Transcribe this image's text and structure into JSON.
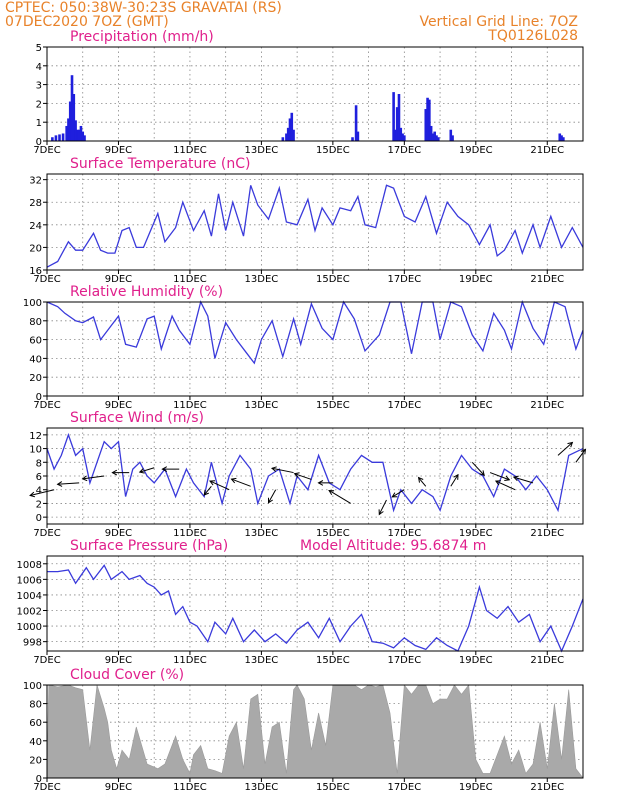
{
  "header": {
    "line1": "CPTEC:   050:38W-30:23S   GRAVATAI (RS)",
    "line2": "07DEC2020 7OZ (GMT)",
    "right1": "Vertical Grid Line: 7OZ",
    "right2": "TQ0126L028"
  },
  "colors": {
    "header": "#e8822a",
    "panel_title": "#e0208c",
    "series": "#3a3adb",
    "bars": "#1f1fdd",
    "cloud": "#a9a9a9"
  },
  "x_axis": {
    "days": [
      7,
      22
    ],
    "ticks": [
      {
        "day": 7,
        "label": "7DEC"
      },
      {
        "day": 9,
        "label": "9DEC"
      },
      {
        "day": 11,
        "label": "11DEC"
      },
      {
        "day": 13,
        "label": "13DEC"
      },
      {
        "day": 15,
        "label": "15DEC"
      },
      {
        "day": 17,
        "label": "17DEC"
      },
      {
        "day": 19,
        "label": "19DEC"
      },
      {
        "day": 21,
        "label": "21DEC"
      }
    ],
    "grid": "daily dotted"
  },
  "chart_data": [
    {
      "type": "bar",
      "title": "Precipitation (mm/h)",
      "ylim": [
        0,
        5
      ],
      "yticks": [
        0,
        1,
        2,
        3,
        4,
        5
      ],
      "x": [
        7.15,
        7.25,
        7.35,
        7.45,
        7.55,
        7.6,
        7.65,
        7.7,
        7.75,
        7.8,
        7.85,
        7.9,
        7.95,
        8.0,
        8.05,
        13.6,
        13.7,
        13.75,
        13.8,
        13.85,
        13.9,
        15.55,
        15.65,
        15.7,
        16.7,
        16.75,
        16.8,
        16.85,
        16.9,
        16.95,
        17.0,
        17.6,
        17.65,
        17.7,
        17.75,
        17.8,
        17.85,
        17.9,
        17.95,
        18.3,
        18.35,
        21.35,
        21.4,
        21.45
      ],
      "values": [
        0.2,
        0.3,
        0.35,
        0.4,
        0.8,
        1.2,
        2.1,
        3.5,
        2.5,
        1.1,
        0.6,
        0.6,
        0.8,
        0.5,
        0.3,
        0.2,
        0.4,
        0.7,
        1.2,
        1.5,
        0.6,
        0.2,
        1.9,
        0.5,
        2.6,
        0.6,
        1.8,
        2.5,
        0.7,
        0.4,
        0.3,
        1.7,
        2.3,
        2.2,
        0.8,
        0.4,
        0.5,
        0.3,
        0.2,
        0.6,
        0.3,
        0.4,
        0.3,
        0.2
      ]
    },
    {
      "type": "line",
      "title": "Surface Temperature (nC)",
      "ylim": [
        16,
        33
      ],
      "yticks": [
        16,
        20,
        24,
        28,
        32
      ],
      "series": [
        {
          "x": [
            7.0,
            7.3,
            7.6,
            7.8,
            8.0,
            8.3,
            8.5,
            8.7,
            8.9,
            9.1,
            9.3,
            9.5,
            9.7,
            9.9,
            10.1,
            10.3,
            10.6,
            10.8,
            11.1,
            11.4,
            11.6,
            11.8,
            12.0,
            12.2,
            12.5,
            12.7,
            12.9,
            13.2,
            13.5,
            13.7,
            14.0,
            14.3,
            14.5,
            14.7,
            15.0,
            15.2,
            15.5,
            15.7,
            15.9,
            16.2,
            16.5,
            16.7,
            17.0,
            17.3,
            17.6,
            17.9,
            18.2,
            18.5,
            18.8,
            19.1,
            19.4,
            19.6,
            19.8,
            20.1,
            20.3,
            20.6,
            20.8,
            21.1,
            21.4,
            21.7,
            22.0
          ],
          "y": [
            16.5,
            17.5,
            21.0,
            19.5,
            19.5,
            22.5,
            19.5,
            19.0,
            19.0,
            23.0,
            23.5,
            20.0,
            20.0,
            23.0,
            26.0,
            21.0,
            23.5,
            28.0,
            23.0,
            26.5,
            22.0,
            29.5,
            23.0,
            28.0,
            22.0,
            31.0,
            27.5,
            25.0,
            30.5,
            24.5,
            24.0,
            28.5,
            23.0,
            27.0,
            24.0,
            27.0,
            26.5,
            29.0,
            24.0,
            23.5,
            31.0,
            30.5,
            25.5,
            24.5,
            29.0,
            22.5,
            28.0,
            25.5,
            24.0,
            20.5,
            24.0,
            18.5,
            19.5,
            23.0,
            19.0,
            24.0,
            20.0,
            25.5,
            20.0,
            23.5,
            20.0
          ]
        }
      ]
    },
    {
      "type": "line",
      "title": "Relative Humidity (%)",
      "ylim": [
        0,
        100
      ],
      "yticks": [
        0,
        20,
        40,
        60,
        80,
        100
      ],
      "series": [
        {
          "x": [
            7.0,
            7.3,
            7.5,
            7.8,
            8.0,
            8.3,
            8.5,
            8.8,
            9.0,
            9.2,
            9.5,
            9.8,
            10.0,
            10.2,
            10.5,
            10.7,
            11.0,
            11.3,
            11.5,
            11.7,
            12.0,
            12.3,
            12.6,
            12.8,
            13.0,
            13.3,
            13.6,
            13.9,
            14.1,
            14.4,
            14.7,
            15.0,
            15.3,
            15.6,
            15.9,
            16.3,
            16.6,
            16.9,
            17.2,
            17.5,
            17.8,
            18.0,
            18.3,
            18.6,
            18.9,
            19.2,
            19.5,
            19.8,
            20.0,
            20.3,
            20.6,
            20.9,
            21.2,
            21.5,
            21.8,
            22.0
          ],
          "y": [
            100,
            95,
            88,
            80,
            78,
            84,
            60,
            75,
            85,
            55,
            52,
            82,
            85,
            50,
            85,
            70,
            55,
            100,
            85,
            40,
            78,
            60,
            45,
            35,
            60,
            80,
            42,
            82,
            55,
            98,
            72,
            60,
            100,
            82,
            48,
            65,
            100,
            100,
            45,
            100,
            100,
            60,
            100,
            95,
            65,
            48,
            88,
            70,
            50,
            100,
            72,
            55,
            100,
            95,
            50,
            70
          ]
        }
      ]
    },
    {
      "type": "line",
      "title": "Surface Wind (m/s)",
      "ylim": [
        -1,
        13
      ],
      "yticks": [
        0,
        2,
        4,
        6,
        8,
        10,
        12
      ],
      "series": [
        {
          "x": [
            7.0,
            7.2,
            7.4,
            7.6,
            7.8,
            8.0,
            8.2,
            8.4,
            8.6,
            8.8,
            9.0,
            9.2,
            9.4,
            9.6,
            9.8,
            10.0,
            10.3,
            10.6,
            10.9,
            11.1,
            11.4,
            11.6,
            11.9,
            12.1,
            12.4,
            12.7,
            12.9,
            13.2,
            13.5,
            13.8,
            14.0,
            14.3,
            14.6,
            14.9,
            15.2,
            15.5,
            15.8,
            16.1,
            16.4,
            16.7,
            16.9,
            17.2,
            17.5,
            17.8,
            18.0,
            18.3,
            18.6,
            18.9,
            19.2,
            19.5,
            19.8,
            20.1,
            20.4,
            20.7,
            21.0,
            21.3,
            21.6,
            22.0
          ],
          "y": [
            10,
            7,
            9,
            12,
            9,
            10,
            5,
            8,
            11,
            10,
            11,
            3,
            7,
            8,
            6,
            5,
            7,
            3,
            7,
            5,
            3,
            8,
            2,
            6,
            9,
            7,
            2,
            6,
            7,
            2,
            6,
            4,
            9,
            5,
            4,
            7,
            9,
            8,
            8,
            1,
            4,
            2,
            4,
            3,
            1,
            6,
            9,
            7,
            6,
            3,
            7,
            6,
            4,
            6,
            4,
            1,
            9,
            10
          ]
        }
      ],
      "arrows": [
        {
          "x": 7.2,
          "y": 4.0,
          "u": 1.0,
          "v": 0.4
        },
        {
          "x": 7.9,
          "y": 5.0,
          "u": 0.9,
          "v": 0.1
        },
        {
          "x": 8.6,
          "y": 6.0,
          "u": 0.9,
          "v": 0.2
        },
        {
          "x": 9.3,
          "y": 6.5,
          "u": 0.7,
          "v": 0.0
        },
        {
          "x": 10.0,
          "y": 7.2,
          "u": 0.6,
          "v": 0.3
        },
        {
          "x": 10.7,
          "y": 7.0,
          "u": 0.7,
          "v": 0.0
        },
        {
          "x": 11.6,
          "y": 4.5,
          "u": 0.3,
          "v": 0.6
        },
        {
          "x": 12.1,
          "y": 4.0,
          "u": 0.8,
          "v": -0.6
        },
        {
          "x": 12.7,
          "y": 4.5,
          "u": 0.8,
          "v": -0.5
        },
        {
          "x": 13.4,
          "y": 4.0,
          "u": 0.3,
          "v": 0.9
        },
        {
          "x": 13.9,
          "y": 6.5,
          "u": 0.9,
          "v": -0.3
        },
        {
          "x": 14.4,
          "y": 5.5,
          "u": 0.7,
          "v": -0.4
        },
        {
          "x": 15.0,
          "y": 5.0,
          "u": 0.6,
          "v": 0.0
        },
        {
          "x": 15.5,
          "y": 2.0,
          "u": 0.9,
          "v": -0.9
        },
        {
          "x": 16.5,
          "y": 2.5,
          "u": 0.3,
          "v": 1.0
        },
        {
          "x": 17.0,
          "y": 4.0,
          "u": 0.5,
          "v": 0.5
        },
        {
          "x": 17.6,
          "y": 4.5,
          "u": 0.3,
          "v": -0.6
        },
        {
          "x": 18.3,
          "y": 4.5,
          "u": -0.3,
          "v": -0.8
        },
        {
          "x": 18.9,
          "y": 8.0,
          "u": -0.5,
          "v": 0.9
        },
        {
          "x": 19.4,
          "y": 6.5,
          "u": -0.8,
          "v": 0.5
        },
        {
          "x": 20.1,
          "y": 4.0,
          "u": 0.8,
          "v": -0.6
        },
        {
          "x": 20.6,
          "y": 5.0,
          "u": 0.8,
          "v": -0.4
        },
        {
          "x": 21.3,
          "y": 9.0,
          "u": -0.6,
          "v": -0.9
        },
        {
          "x": 21.8,
          "y": 8.0,
          "u": -0.4,
          "v": -0.9
        }
      ]
    },
    {
      "type": "line",
      "title": "Surface Pressure (hPa)",
      "subtitle": "Model Altitude: 95.6874 m",
      "ylim": [
        996.8,
        1009
      ],
      "yticks": [
        998,
        1000,
        1002,
        1004,
        1006,
        1008
      ],
      "series": [
        {
          "x": [
            7.0,
            7.3,
            7.6,
            7.8,
            8.1,
            8.3,
            8.6,
            8.8,
            9.1,
            9.3,
            9.6,
            9.8,
            10.0,
            10.2,
            10.4,
            10.6,
            10.8,
            11.0,
            11.2,
            11.5,
            11.7,
            12.0,
            12.2,
            12.5,
            12.8,
            13.1,
            13.4,
            13.7,
            14.0,
            14.3,
            14.6,
            14.9,
            15.2,
            15.5,
            15.8,
            16.1,
            16.4,
            16.7,
            17.0,
            17.3,
            17.6,
            17.9,
            18.2,
            18.5,
            18.8,
            19.1,
            19.3,
            19.6,
            19.9,
            20.2,
            20.5,
            20.8,
            21.1,
            21.4,
            21.7,
            22.0
          ],
          "y": [
            1007,
            1007,
            1007.2,
            1005.5,
            1007.5,
            1006,
            1007.8,
            1006,
            1007,
            1006,
            1006.5,
            1005.5,
            1005,
            1004,
            1004.5,
            1001.5,
            1002.5,
            1000.5,
            1000,
            998,
            1000.5,
            999,
            1001,
            998,
            999.5,
            998,
            999,
            997.8,
            999.5,
            1000.5,
            998.5,
            1001,
            998,
            1000,
            1001.5,
            998,
            997.8,
            997.2,
            998.5,
            997.5,
            997,
            998.5,
            997.5,
            996.8,
            1000,
            1005,
            1002,
            1001,
            1002.5,
            1000.5,
            1001.5,
            998,
            1000,
            996.8,
            1000,
            1003.5
          ]
        }
      ]
    },
    {
      "type": "area",
      "title": "Cloud Cover (%)",
      "ylim": [
        0,
        100
      ],
      "yticks": [
        0,
        20,
        40,
        60,
        80,
        100
      ],
      "series": [
        {
          "x": [
            7.0,
            7.05,
            7.3,
            7.6,
            7.8,
            8.0,
            8.2,
            8.4,
            8.6,
            8.7,
            8.8,
            8.95,
            9.1,
            9.3,
            9.5,
            9.8,
            10.1,
            10.3,
            10.6,
            10.8,
            11.0,
            11.1,
            11.3,
            11.5,
            11.7,
            11.9,
            12.1,
            12.3,
            12.5,
            12.7,
            12.9,
            13.1,
            13.3,
            13.5,
            13.7,
            13.9,
            14.0,
            14.2,
            14.4,
            14.6,
            14.8,
            15.0,
            15.2,
            15.4,
            15.6,
            15.8,
            16.0,
            16.2,
            16.4,
            16.6,
            16.8,
            17.0,
            17.2,
            17.4,
            17.6,
            17.8,
            18.0,
            18.2,
            18.4,
            18.6,
            18.8,
            19.0,
            19.2,
            19.4,
            19.6,
            19.8,
            20.0,
            20.2,
            20.4,
            20.6,
            20.8,
            21.0,
            21.2,
            21.4,
            21.6,
            21.8,
            22.0
          ],
          "y": [
            0,
            100,
            98,
            100,
            97,
            95,
            30,
            100,
            75,
            60,
            30,
            10,
            30,
            20,
            55,
            15,
            10,
            15,
            45,
            20,
            5,
            25,
            35,
            10,
            8,
            5,
            45,
            60,
            10,
            85,
            90,
            15,
            55,
            60,
            5,
            95,
            100,
            85,
            30,
            70,
            35,
            100,
            100,
            100,
            100,
            95,
            100,
            98,
            100,
            70,
            5,
            100,
            90,
            100,
            100,
            80,
            85,
            85,
            100,
            90,
            100,
            20,
            5,
            5,
            25,
            45,
            15,
            30,
            5,
            15,
            60,
            10,
            80,
            20,
            95,
            10,
            0
          ]
        }
      ]
    }
  ]
}
